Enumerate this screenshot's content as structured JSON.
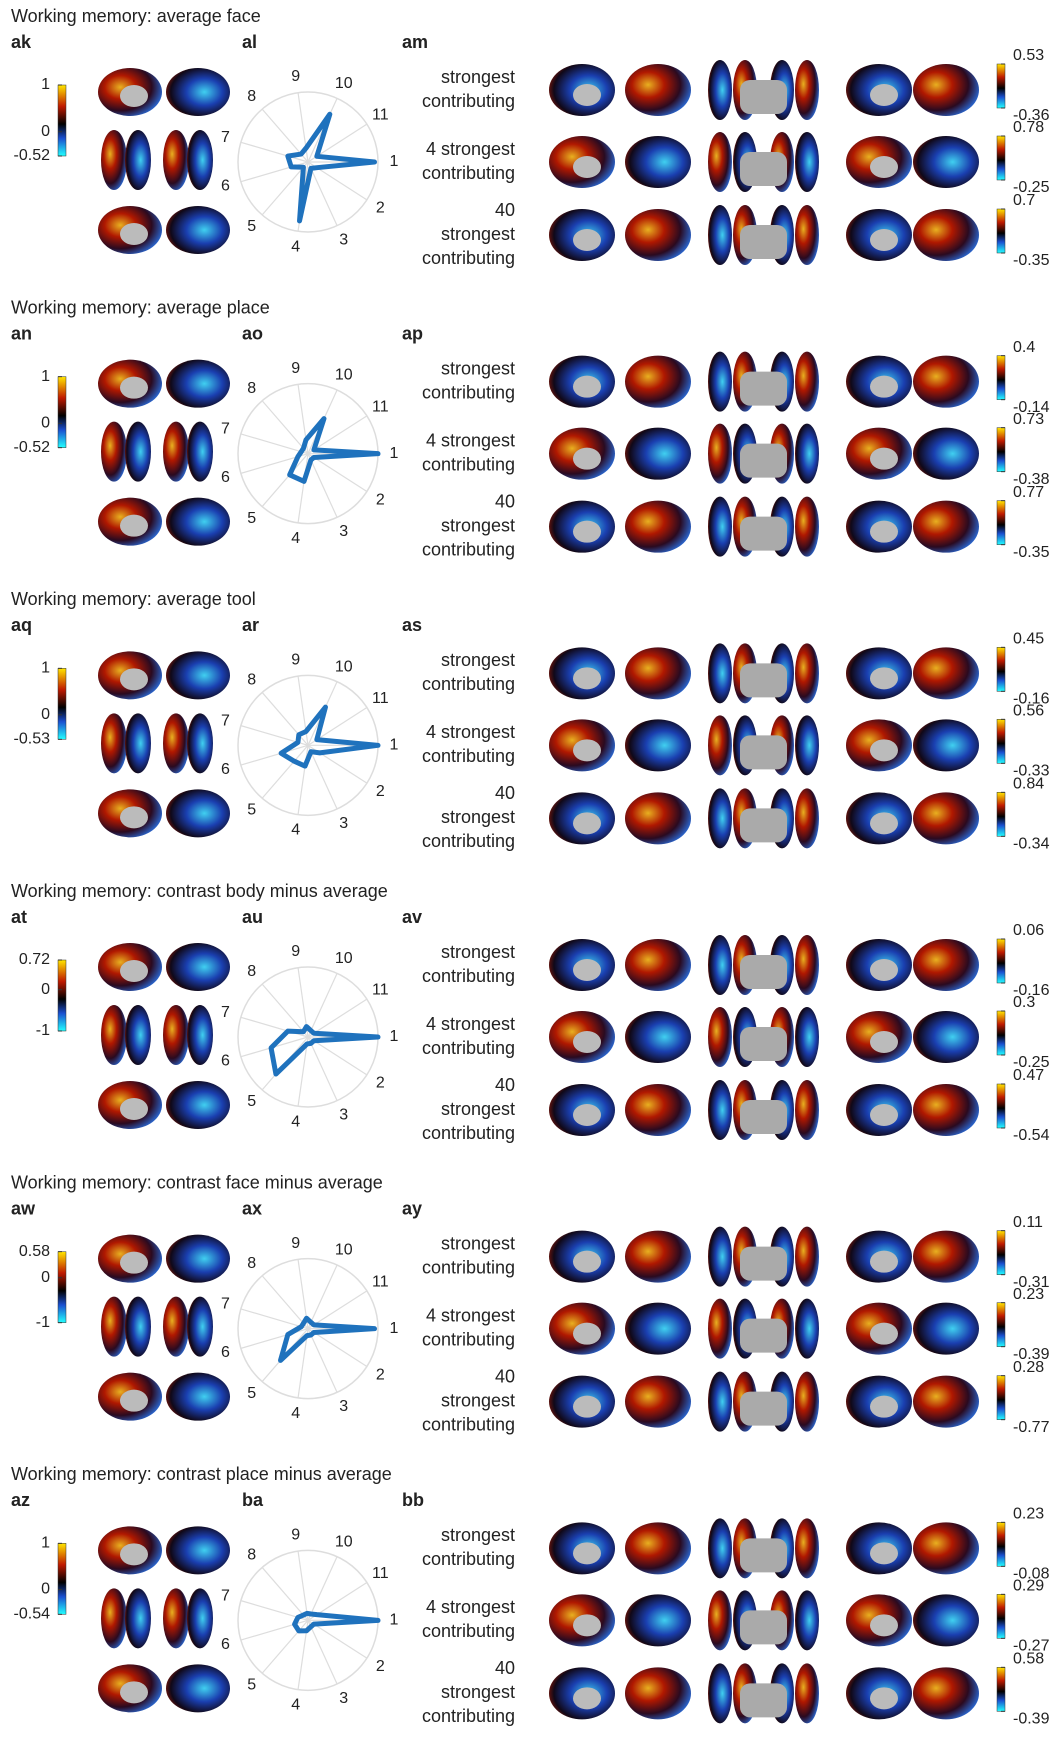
{
  "panels": [
    {
      "title": "Working memory: average face",
      "letters": [
        "ak",
        "al",
        "am"
      ],
      "colorbar": [
        1,
        0,
        -0.52
      ],
      "radar": {
        "axes": [
          "1",
          "2",
          "3",
          "4",
          "5",
          "6",
          "7",
          "8",
          "9",
          "10",
          "11"
        ],
        "rlim": [
          0,
          1
        ],
        "values": [
          0.95,
          0.15,
          0.1,
          0.85,
          0.1,
          0.25,
          0.3,
          0.15,
          0.2,
          0.75,
          0.15
        ]
      },
      "rows": [
        {
          "lines": [
            "strongest",
            "contributing"
          ],
          "max": 0.53,
          "min": -0.36
        },
        {
          "lines": [
            "4 strongest",
            "contributing"
          ],
          "max": 0.78,
          "min": -0.25
        },
        {
          "lines": [
            "40",
            "strongest",
            "contributing"
          ],
          "max": 0.7,
          "min": -0.35
        }
      ]
    },
    {
      "title": "Working memory: average place",
      "letters": [
        "an",
        "ao",
        "ap"
      ],
      "colorbar": [
        1,
        0,
        -0.52
      ],
      "radar": {
        "axes": [
          "1",
          "2",
          "3",
          "4",
          "5",
          "6",
          "7",
          "8",
          "9",
          "10",
          "11"
        ],
        "rlim": [
          0,
          1
        ],
        "values": [
          1.0,
          0.1,
          0.1,
          0.4,
          0.4,
          0.15,
          0.1,
          0.1,
          0.2,
          0.55,
          0.1
        ]
      },
      "rows": [
        {
          "lines": [
            "strongest",
            "contributing"
          ],
          "max": 0.4,
          "min": -0.14
        },
        {
          "lines": [
            "4 strongest",
            "contributing"
          ],
          "max": 0.73,
          "min": -0.38
        },
        {
          "lines": [
            "40",
            "strongest",
            "contributing"
          ],
          "max": 0.77,
          "min": -0.35
        }
      ]
    },
    {
      "title": "Working memory: average tool",
      "letters": [
        "aq",
        "ar",
        "as"
      ],
      "colorbar": [
        1,
        0,
        -0.53
      ],
      "radar": {
        "axes": [
          "1",
          "2",
          "3",
          "4",
          "5",
          "6",
          "7",
          "8",
          "9",
          "10",
          "11"
        ],
        "rlim": [
          0,
          1
        ],
        "values": [
          1.0,
          0.2,
          0.1,
          0.3,
          0.3,
          0.4,
          0.15,
          0.2,
          0.2,
          0.6,
          0.15
        ]
      },
      "rows": [
        {
          "lines": [
            "strongest",
            "contributing"
          ],
          "max": 0.45,
          "min": -0.16
        },
        {
          "lines": [
            "4 strongest",
            "contributing"
          ],
          "max": 0.56,
          "min": -0.33
        },
        {
          "lines": [
            "40",
            "strongest",
            "contributing"
          ],
          "max": 0.84,
          "min": -0.34
        }
      ]
    },
    {
      "title": "Working memory: contrast body minus average",
      "letters": [
        "at",
        "au",
        "av"
      ],
      "colorbar": [
        0.72,
        0,
        -1
      ],
      "radar": {
        "axes": [
          "1",
          "2",
          "3",
          "4",
          "5",
          "6",
          "7",
          "8",
          "9",
          "10",
          "11"
        ],
        "rlim": [
          0,
          1
        ],
        "values": [
          1.0,
          0.1,
          0.1,
          0.1,
          0.7,
          0.55,
          0.3,
          0.1,
          0.15,
          0.1,
          0.1
        ]
      },
      "rows": [
        {
          "lines": [
            "strongest",
            "contributing"
          ],
          "max": 0.06,
          "min": -0.16
        },
        {
          "lines": [
            "4 strongest",
            "contributing"
          ],
          "max": 0.3,
          "min": -0.25
        },
        {
          "lines": [
            "40",
            "strongest",
            "contributing"
          ],
          "max": 0.47,
          "min": -0.54
        }
      ]
    },
    {
      "title": "Working memory: contrast face minus average",
      "letters": [
        "aw",
        "ax",
        "ay"
      ],
      "colorbar": [
        0.58,
        0,
        -1
      ],
      "radar": {
        "axes": [
          "1",
          "2",
          "3",
          "4",
          "5",
          "6",
          "7",
          "8",
          "9",
          "10",
          "11"
        ],
        "rlim": [
          0,
          1
        ],
        "values": [
          0.95,
          0.1,
          0.1,
          0.1,
          0.6,
          0.3,
          0.1,
          0.1,
          0.15,
          0.1,
          0.1
        ]
      },
      "rows": [
        {
          "lines": [
            "strongest",
            "contributing"
          ],
          "max": 0.11,
          "min": -0.31
        },
        {
          "lines": [
            "4 strongest",
            "contributing"
          ],
          "max": 0.23,
          "min": -0.39
        },
        {
          "lines": [
            "40",
            "strongest",
            "contributing"
          ],
          "max": 0.28,
          "min": -0.77
        }
      ]
    },
    {
      "title": "Working memory: contrast place minus average",
      "letters": [
        "az",
        "ba",
        "bb"
      ],
      "colorbar": [
        1,
        0,
        -0.54
      ],
      "radar": {
        "axes": [
          "1",
          "2",
          "3",
          "4",
          "5",
          "6",
          "7",
          "8",
          "9",
          "10",
          "11"
        ],
        "rlim": [
          0,
          1
        ],
        "values": [
          1.0,
          0.1,
          0.1,
          0.15,
          0.2,
          0.2,
          0.15,
          0.1,
          0.1,
          0.1,
          0.15
        ]
      },
      "rows": [
        {
          "lines": [
            "strongest",
            "contributing"
          ],
          "max": 0.23,
          "min": -0.08
        },
        {
          "lines": [
            "4 strongest",
            "contributing"
          ],
          "max": 0.29,
          "min": -0.27
        },
        {
          "lines": [
            "40",
            "strongest",
            "contributing"
          ],
          "max": 0.58,
          "min": -0.39
        }
      ]
    }
  ]
}
